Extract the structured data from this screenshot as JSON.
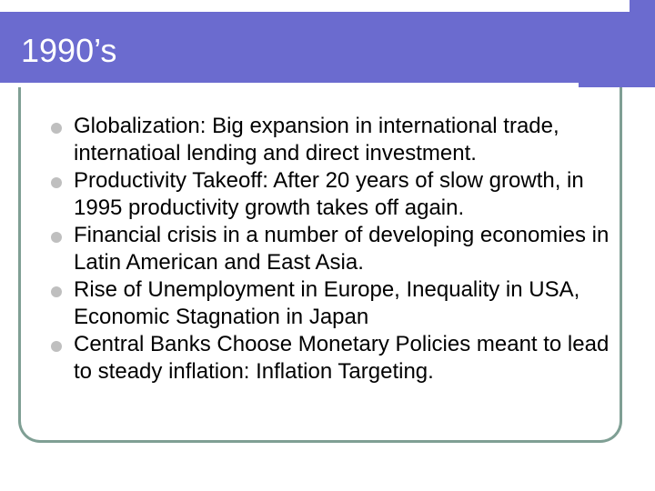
{
  "slide": {
    "title": "1990’s",
    "accent_color": "#6b6bcf",
    "frame_color": "#7f9f94",
    "bullet_icon": "bullet-dot-icon",
    "bullets": [
      "Globalization: Big expansion in international trade, internatioal lending and direct investment.",
      "Productivity Takeoff: After 20 years of slow growth, in 1995 productivity growth takes off again.",
      "Financial crisis in a number of developing economies in Latin American and East Asia.",
      "Rise of Unemployment in Europe, Inequality in USA, Economic Stagnation in Japan",
      "Central Banks Choose Monetary Policies meant to lead to steady inflation: Inflation Targeting."
    ]
  }
}
